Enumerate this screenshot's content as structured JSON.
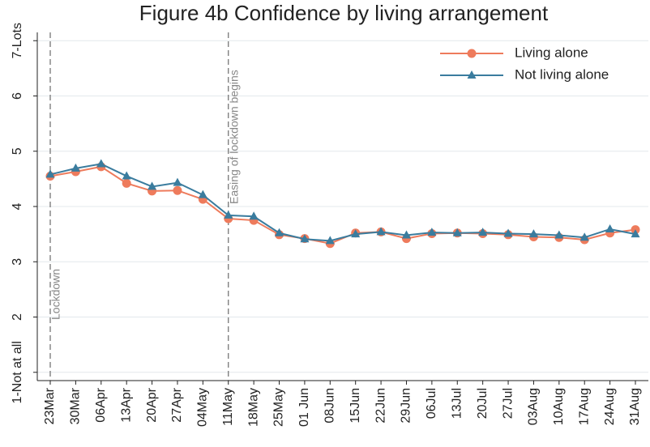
{
  "chart_data": {
    "type": "line",
    "title": "Figure 4b Confidence by living arrangement",
    "categories": [
      "23Mar",
      "30Mar",
      "06Apr",
      "13Apr",
      "20Apr",
      "27Apr",
      "04May",
      "11May",
      "18May",
      "25May",
      "01 Jun",
      "08Jun",
      "15Jun",
      "22Jun",
      "29Jun",
      "06Jul",
      "13Jul",
      "20Jul",
      "27Jul",
      "03Aug",
      "10Aug",
      "17Aug",
      "24Aug",
      "31Aug"
    ],
    "series": [
      {
        "name": "Living alone",
        "color": "#ee7b5c",
        "marker": "circle",
        "values": [
          4.55,
          4.63,
          4.72,
          4.42,
          4.28,
          4.29,
          4.13,
          3.78,
          3.75,
          3.49,
          3.42,
          3.33,
          3.52,
          3.54,
          3.42,
          3.51,
          3.52,
          3.51,
          3.49,
          3.45,
          3.44,
          3.4,
          3.52,
          3.58
        ]
      },
      {
        "name": "Not living alone",
        "color": "#3a7c9e",
        "marker": "triangle",
        "values": [
          4.58,
          4.69,
          4.77,
          4.55,
          4.36,
          4.43,
          4.21,
          3.84,
          3.82,
          3.52,
          3.41,
          3.38,
          3.5,
          3.54,
          3.48,
          3.53,
          3.52,
          3.53,
          3.51,
          3.5,
          3.48,
          3.44,
          3.59,
          3.5
        ]
      }
    ],
    "ylim": [
      0.85,
      7.15
    ],
    "yticks": [
      {
        "value": 1,
        "label": "1-Not at all"
      },
      2,
      3,
      4,
      5,
      6,
      {
        "value": 7,
        "label": "7-Lots"
      }
    ],
    "grid": true,
    "legend": "top-right",
    "annotations": [
      {
        "text": "Lockdown",
        "x": "23Mar"
      },
      {
        "text": "Easing of lockdown begins",
        "x": "11May"
      }
    ]
  }
}
